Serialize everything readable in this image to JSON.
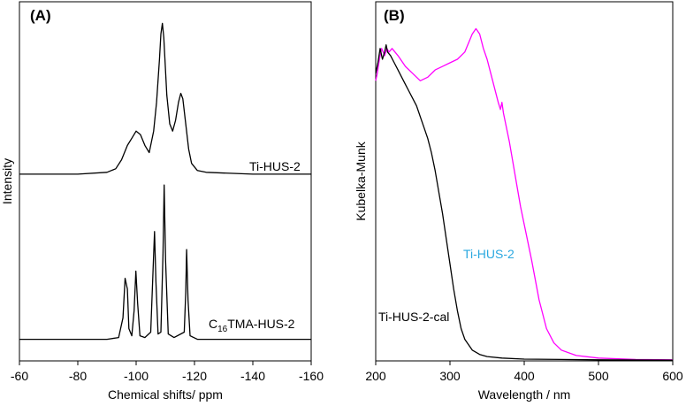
{
  "chart_data": [
    {
      "type": "line",
      "panel_label": "(A)",
      "xlabel": "Chemical shifts/ ppm",
      "ylabel": "Intensity",
      "xlim": [
        -60,
        -160
      ],
      "x_reversed": true,
      "xticks": [
        -60,
        -80,
        -100,
        -120,
        -140,
        -160
      ],
      "y_ticks_shown": false,
      "series": [
        {
          "name": "Ti-HUS-2",
          "color": "#000000",
          "points": [
            [
              -60,
              0.52
            ],
            [
              -80,
              0.52
            ],
            [
              -90,
              0.525
            ],
            [
              -93,
              0.535
            ],
            [
              -95,
              0.56
            ],
            [
              -97,
              0.6
            ],
            [
              -98.5,
              0.62
            ],
            [
              -100,
              0.64
            ],
            [
              -101.5,
              0.63
            ],
            [
              -103,
              0.6
            ],
            [
              -104.5,
              0.58
            ],
            [
              -106,
              0.64
            ],
            [
              -107,
              0.72
            ],
            [
              -108,
              0.84
            ],
            [
              -108.5,
              0.91
            ],
            [
              -109,
              0.94
            ],
            [
              -109.5,
              0.9
            ],
            [
              -110.5,
              0.74
            ],
            [
              -111.5,
              0.66
            ],
            [
              -112.5,
              0.64
            ],
            [
              -113.5,
              0.67
            ],
            [
              -114.5,
              0.72
            ],
            [
              -115.3,
              0.745
            ],
            [
              -116,
              0.73
            ],
            [
              -117,
              0.66
            ],
            [
              -118,
              0.59
            ],
            [
              -119,
              0.55
            ],
            [
              -121,
              0.53
            ],
            [
              -124,
              0.525
            ],
            [
              -140,
              0.52
            ],
            [
              -160,
              0.52
            ]
          ]
        },
        {
          "name": "C16TMA-HUS-2",
          "color": "#000000",
          "points": [
            [
              -60,
              0.06
            ],
            [
              -80,
              0.06
            ],
            [
              -90,
              0.06
            ],
            [
              -94,
              0.065
            ],
            [
              -95.5,
              0.12
            ],
            [
              -96.2,
              0.23
            ],
            [
              -97,
              0.2
            ],
            [
              -97.5,
              0.09
            ],
            [
              -98.5,
              0.07
            ],
            [
              -99.3,
              0.14
            ],
            [
              -99.9,
              0.25
            ],
            [
              -100.5,
              0.16
            ],
            [
              -101.3,
              0.07
            ],
            [
              -103,
              0.065
            ],
            [
              -105,
              0.08
            ],
            [
              -105.8,
              0.25
            ],
            [
              -106.3,
              0.36
            ],
            [
              -106.8,
              0.22
            ],
            [
              -107.5,
              0.075
            ],
            [
              -108.5,
              0.08
            ],
            [
              -109.2,
              0.3
            ],
            [
              -109.6,
              0.49
            ],
            [
              -110.1,
              0.28
            ],
            [
              -111,
              0.075
            ],
            [
              -113,
              0.065
            ],
            [
              -116.5,
              0.08
            ],
            [
              -117,
              0.19
            ],
            [
              -117.3,
              0.31
            ],
            [
              -117.8,
              0.17
            ],
            [
              -118.5,
              0.07
            ],
            [
              -121,
              0.06
            ],
            [
              -140,
              0.06
            ],
            [
              -160,
              0.06
            ]
          ]
        }
      ],
      "annotations": [
        {
          "text": "Ti-HUS-2",
          "x": -134,
          "y": 0.55,
          "color": "#000000"
        },
        {
          "text": "C",
          "sub": "16",
          "rest": "TMA-HUS-2",
          "x": -142,
          "y": 0.1,
          "color": "#000000"
        }
      ]
    },
    {
      "type": "line",
      "panel_label": "(B)",
      "xlabel": "Wavelength / nm",
      "ylabel": "Kubelka-Munk",
      "xlim": [
        200,
        600
      ],
      "xticks": [
        200,
        300,
        400,
        500,
        600
      ],
      "y_ticks_shown": false,
      "series": [
        {
          "name": "Ti-HUS-2",
          "color": "#ff00ff",
          "points": [
            [
              200,
              0.78
            ],
            [
              202,
              0.8
            ],
            [
              205,
              0.84
            ],
            [
              208,
              0.87
            ],
            [
              210,
              0.86
            ],
            [
              212,
              0.85
            ],
            [
              215,
              0.87
            ],
            [
              218,
              0.86
            ],
            [
              222,
              0.87
            ],
            [
              230,
              0.85
            ],
            [
              240,
              0.82
            ],
            [
              250,
              0.8
            ],
            [
              260,
              0.78
            ],
            [
              270,
              0.79
            ],
            [
              280,
              0.81
            ],
            [
              290,
              0.82
            ],
            [
              300,
              0.83
            ],
            [
              310,
              0.84
            ],
            [
              320,
              0.86
            ],
            [
              330,
              0.91
            ],
            [
              335,
              0.925
            ],
            [
              340,
              0.91
            ],
            [
              345,
              0.87
            ],
            [
              350,
              0.84
            ],
            [
              355,
              0.8
            ],
            [
              360,
              0.76
            ],
            [
              365,
              0.72
            ],
            [
              368,
              0.7
            ],
            [
              370,
              0.72
            ],
            [
              372,
              0.69
            ],
            [
              375,
              0.66
            ],
            [
              380,
              0.61
            ],
            [
              385,
              0.55
            ],
            [
              390,
              0.49
            ],
            [
              395,
              0.43
            ],
            [
              400,
              0.38
            ],
            [
              410,
              0.28
            ],
            [
              420,
              0.17
            ],
            [
              430,
              0.09
            ],
            [
              440,
              0.05
            ],
            [
              450,
              0.03
            ],
            [
              470,
              0.015
            ],
            [
              500,
              0.008
            ],
            [
              550,
              0.004
            ],
            [
              600,
              0.003
            ]
          ]
        },
        {
          "name": "Ti-HUS-2-cal",
          "color": "#000000",
          "points": [
            [
              200,
              0.8
            ],
            [
              203,
              0.83
            ],
            [
              206,
              0.87
            ],
            [
              209,
              0.84
            ],
            [
              212,
              0.86
            ],
            [
              214,
              0.88
            ],
            [
              216,
              0.86
            ],
            [
              220,
              0.85
            ],
            [
              225,
              0.83
            ],
            [
              230,
              0.81
            ],
            [
              235,
              0.79
            ],
            [
              240,
              0.77
            ],
            [
              245,
              0.75
            ],
            [
              250,
              0.73
            ],
            [
              255,
              0.71
            ],
            [
              260,
              0.68
            ],
            [
              265,
              0.65
            ],
            [
              270,
              0.62
            ],
            [
              275,
              0.58
            ],
            [
              280,
              0.53
            ],
            [
              285,
              0.47
            ],
            [
              290,
              0.41
            ],
            [
              295,
              0.34
            ],
            [
              300,
              0.27
            ],
            [
              305,
              0.2
            ],
            [
              310,
              0.14
            ],
            [
              315,
              0.09
            ],
            [
              320,
              0.06
            ],
            [
              330,
              0.03
            ],
            [
              340,
              0.018
            ],
            [
              350,
              0.012
            ],
            [
              370,
              0.008
            ],
            [
              400,
              0.005
            ],
            [
              500,
              0.003
            ],
            [
              600,
              0.002
            ]
          ]
        }
      ],
      "annotations": [
        {
          "text": "Ti-HUS-2",
          "x": 325,
          "y": 0.37,
          "color": "#2aa8e0"
        },
        {
          "text": "Ti-HUS-2-cal",
          "x": 202,
          "y": 0.12,
          "color": "#000000"
        }
      ]
    }
  ]
}
